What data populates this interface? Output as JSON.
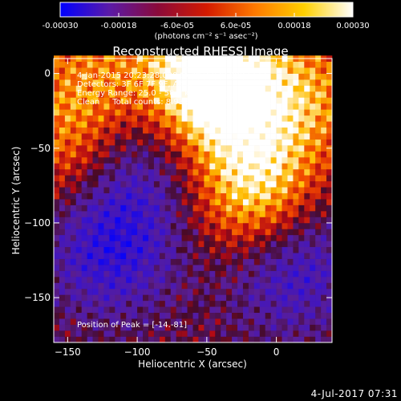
{
  "colorbar": {
    "ticks": [
      "-0.00030",
      "-0.00018",
      "-6.0e-05",
      "6.0e-05",
      "0.00018",
      "0.00030"
    ],
    "tick_values": [
      -0.0003,
      -0.00018,
      -6e-05,
      6e-05,
      0.00018,
      0.0003
    ],
    "units": "(photons cm⁻² s⁻¹ asec⁻²)",
    "range": [
      -0.0003,
      0.0003
    ],
    "colors": [
      "#0000ff",
      "#5a1aa8",
      "#8a0a3a",
      "#d41a00",
      "#ff7a00",
      "#ffd000",
      "#ffffff"
    ]
  },
  "title": "Reconstructed RHESSI Image",
  "annotations": {
    "line1": "4-Jan-2015 20:23:28.000 to 20:33:28.000",
    "line2": "Detectors: 3F 6F 7F 9F, Att 0",
    "line3": "Energy Range: 25.0 - 50.0 keV",
    "line4": "Clean     Total counts: 8.93E+03",
    "peak": "Position of Peak = [-14.-81]"
  },
  "footer": "4-Jul-2017 07:31",
  "chart_data": {
    "type": "heatmap",
    "title": "Reconstructed RHESSI Image",
    "xlabel": "Heliocentric X (arcsec)",
    "ylabel": "Heliocentric Y (arcsec)",
    "xlim": [
      -160,
      40
    ],
    "ylim": [
      -180,
      10
    ],
    "x_ticks": [
      -150,
      -100,
      -50,
      0
    ],
    "y_ticks": [
      0,
      -50,
      -100,
      -150
    ],
    "x_tick_labels": [
      "−150",
      "−100",
      "−50",
      "0"
    ],
    "y_tick_labels": [
      "0",
      "−50",
      "−100",
      "−150"
    ],
    "peak_position": [
      -14,
      -81
    ],
    "value_range": [
      -0.0003,
      0.0003
    ],
    "bright_regions": [
      {
        "x": -14,
        "y": -81,
        "relative_intensity": 1.0
      },
      {
        "x": -35,
        "y": -12,
        "relative_intensity": 0.9
      },
      {
        "x": -60,
        "y": 0,
        "relative_intensity": 0.75
      },
      {
        "x": -135,
        "y": -5,
        "relative_intensity": 0.55
      },
      {
        "x": -150,
        "y": -55,
        "relative_intensity": 0.5
      },
      {
        "x": 25,
        "y": -15,
        "relative_intensity": 0.55
      }
    ],
    "dim_regions": [
      {
        "x": -120,
        "y": -115,
        "relative_intensity": -0.7
      },
      {
        "x": 10,
        "y": -125,
        "relative_intensity": -0.7
      },
      {
        "x": -100,
        "y": -55,
        "relative_intensity": -0.45
      }
    ]
  }
}
